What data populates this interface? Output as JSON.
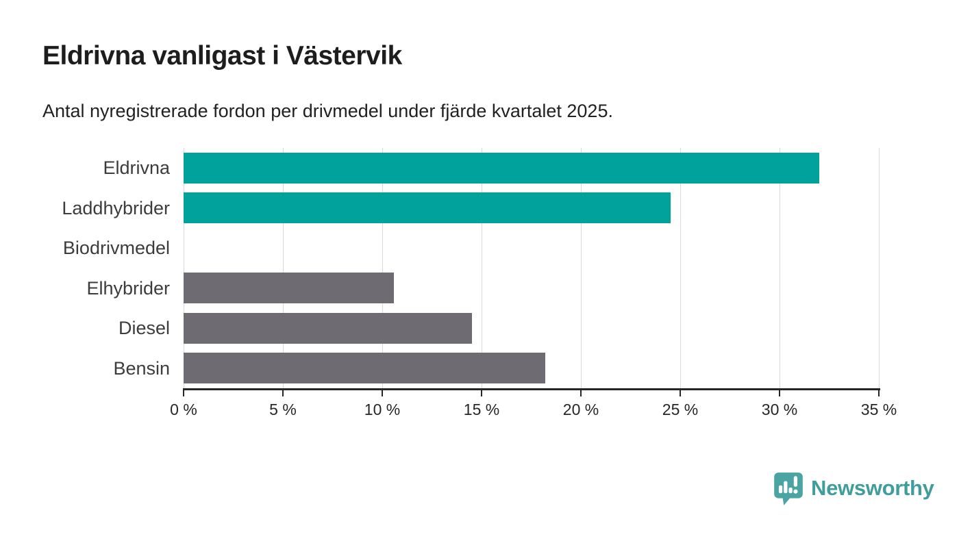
{
  "header": {
    "title": "Eldrivna vanligast i Västervik",
    "subtitle": "Antal nyregistrerade fordon per drivmedel under fjärde kvartalet 2025."
  },
  "colors": {
    "accent_teal": "#00a29b",
    "neutral_gray": "#6e6b72",
    "gridline": "#d9d9d9",
    "axis": "#262626",
    "logo_mark": "#4aa5a2",
    "logo_text": "#3f9e9b"
  },
  "chart_data": {
    "type": "bar",
    "orientation": "horizontal",
    "title": "Eldrivna vanligast i Västervik",
    "subtitle": "Antal nyregistrerade fordon per drivmedel under fjärde kvartalet 2025.",
    "categories": [
      "Eldrivna",
      "Laddhybrider",
      "Biodrivmedel",
      "Elhybrider",
      "Diesel",
      "Bensin"
    ],
    "values": [
      32,
      24.5,
      0,
      10.6,
      14.5,
      18.2
    ],
    "unit": "%",
    "bar_colors": [
      "#00a29b",
      "#00a29b",
      "#6e6b72",
      "#6e6b72",
      "#6e6b72",
      "#6e6b72"
    ],
    "xlim": [
      0,
      35
    ],
    "x_ticks": [
      0,
      5,
      10,
      15,
      20,
      25,
      30,
      35
    ],
    "x_tick_labels": [
      "0 %",
      "5 %",
      "10 %",
      "15 %",
      "20 %",
      "25 %",
      "30 %",
      "35 %"
    ],
    "grid": "vertical",
    "legend": "none"
  },
  "footer": {
    "logo_text": "Newsworthy",
    "logo_icon": "newsworthy-chart-bubble-icon"
  }
}
